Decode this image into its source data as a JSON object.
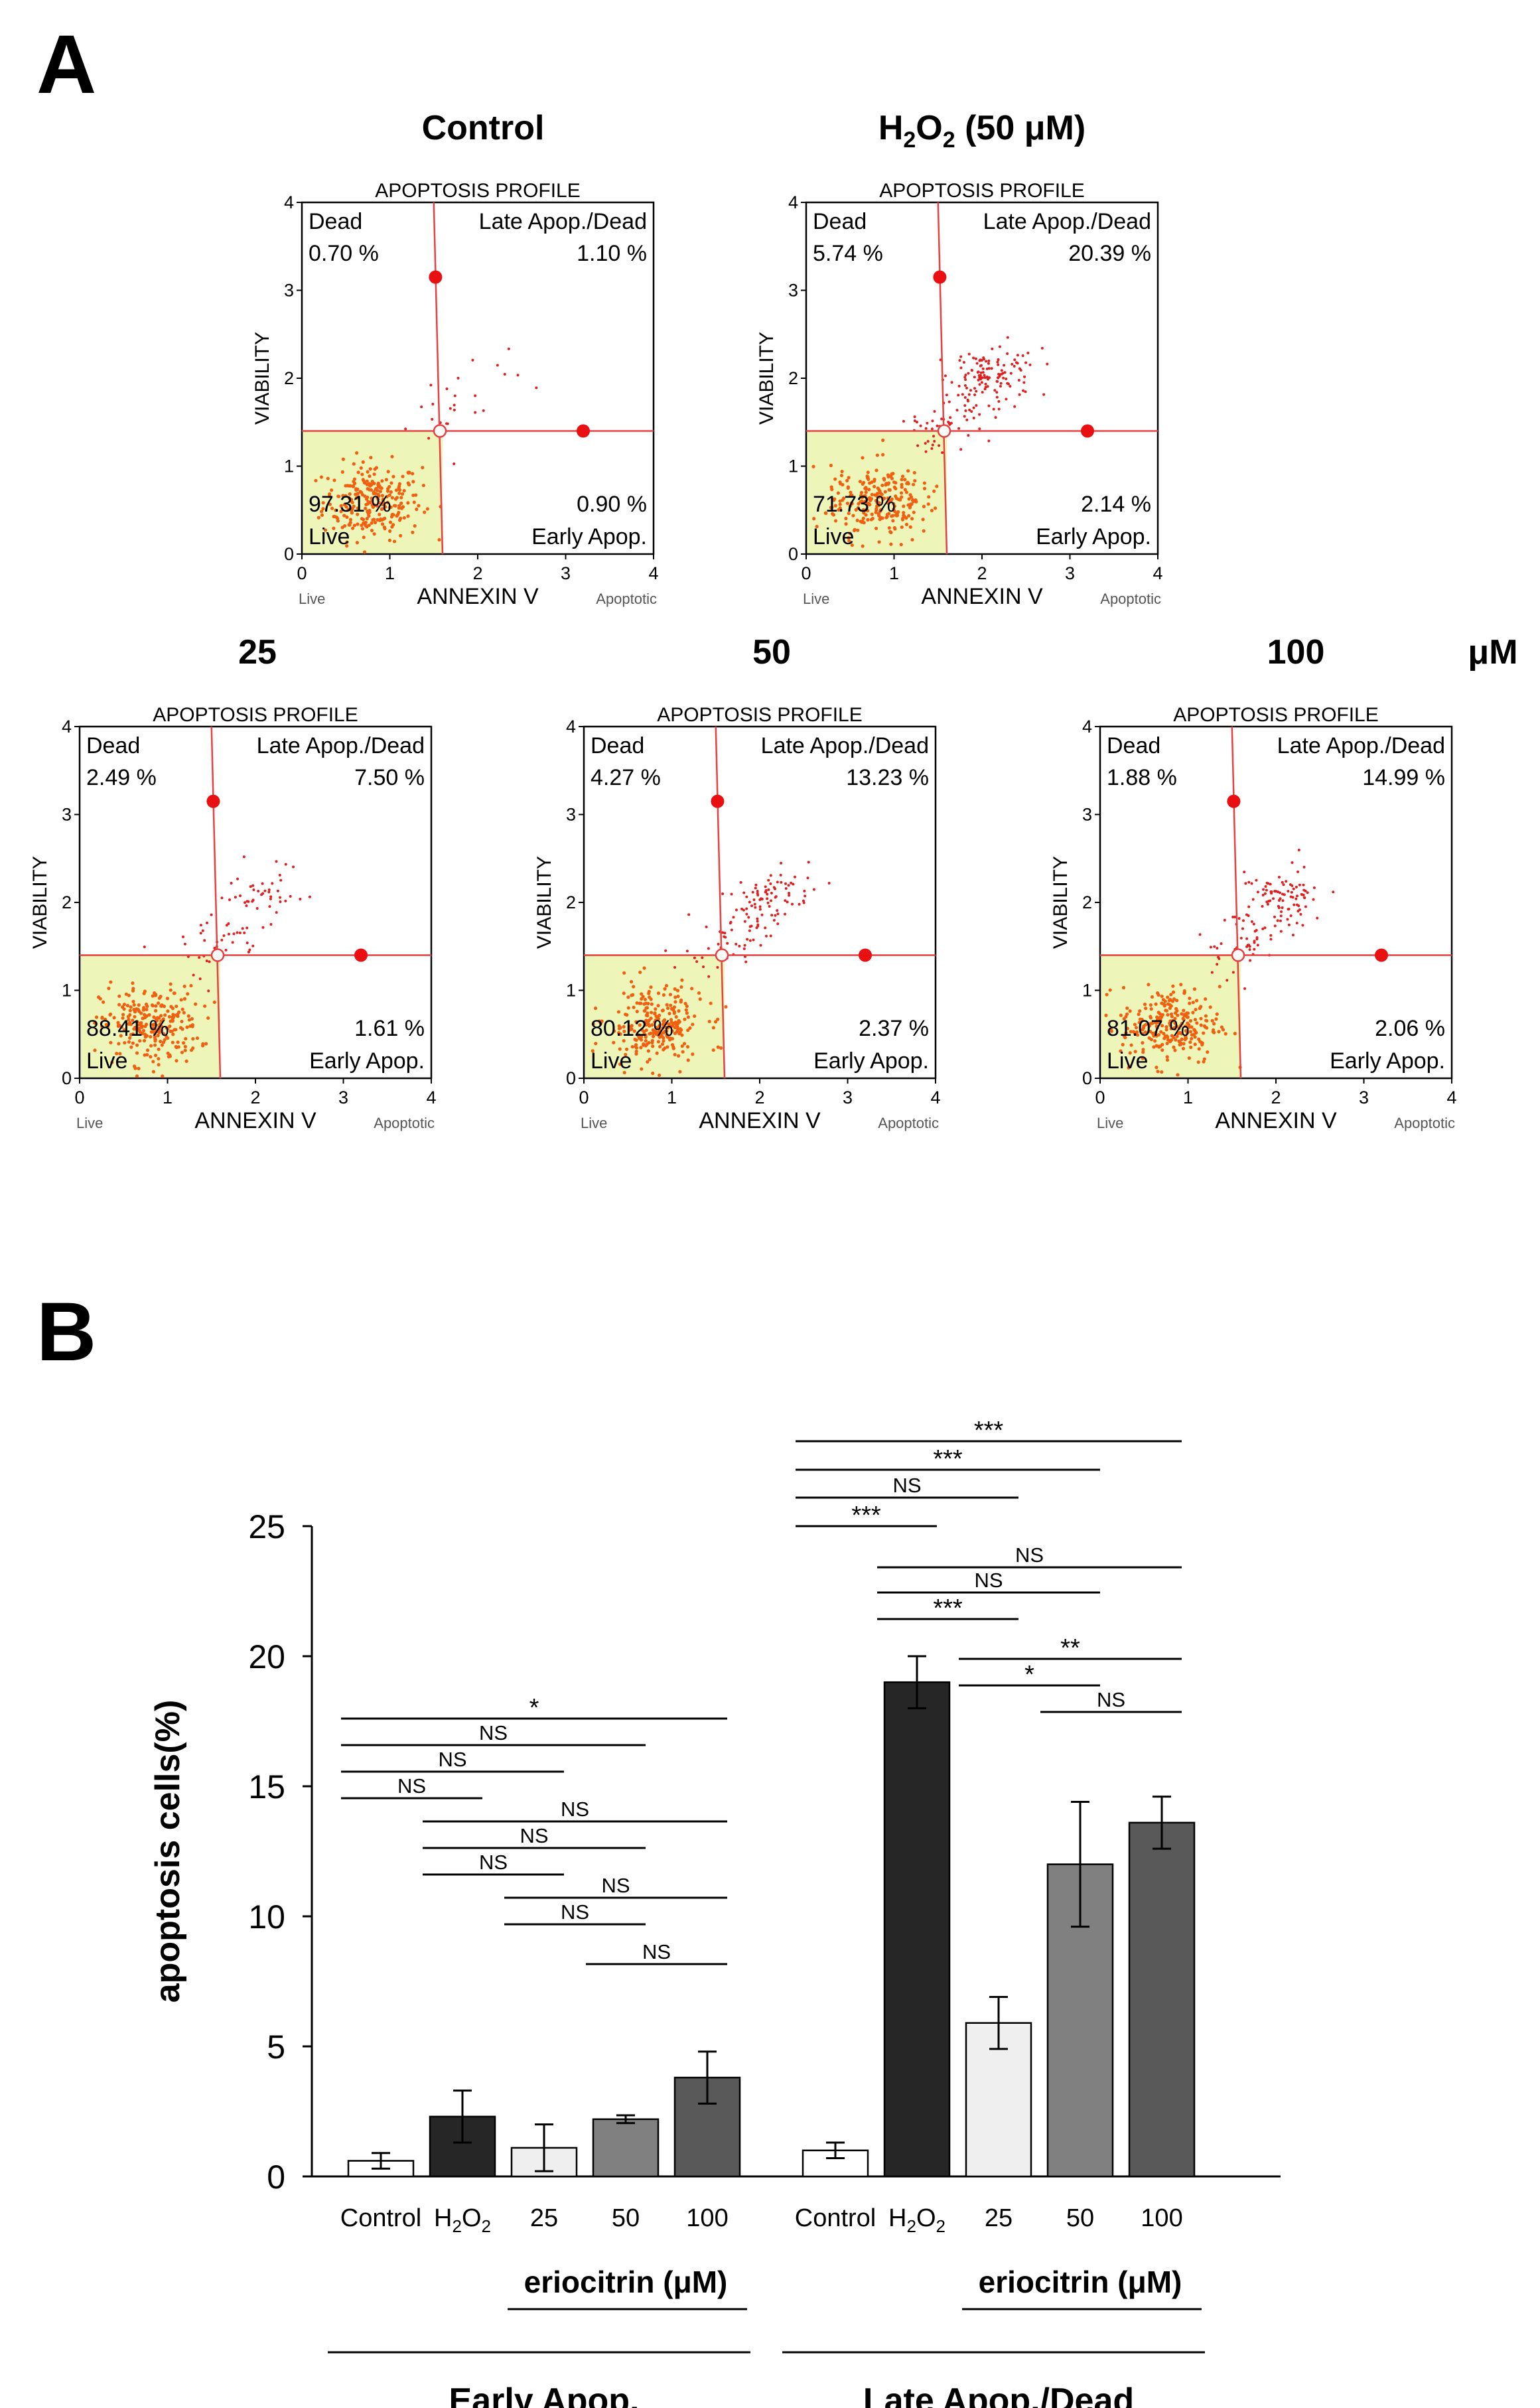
{
  "panel_a_label": "A",
  "panel_b_label": "B",
  "col_titles": {
    "control": "Control",
    "h2o2_prefix": "H",
    "h2o2_sub1": "2",
    "h2o2_mid": "O",
    "h2o2_sub2": "2",
    "h2o2_suffix": " (50 μM)"
  },
  "row2_titles": [
    "25",
    "50",
    "100"
  ],
  "row2_unit": "μM",
  "plot_labels": {
    "profile": "APOPTOSIS PROFILE",
    "dead": "Dead",
    "late": "Late Apop./Dead",
    "live": "Live",
    "early": "Early Apop.",
    "xlabel": "ANNEXIN V",
    "ylabel": "VIABILITY",
    "live_small": "Live",
    "apoptotic_small": "Apoptotic",
    "ticks": [
      "0",
      "1",
      "2",
      "3",
      "4"
    ]
  },
  "flow_plots": [
    {
      "id": "control",
      "dead": "0.70 %",
      "late": "1.10 %",
      "live": "97.31 %",
      "early": "0.90 %"
    },
    {
      "id": "h2o2",
      "dead": "5.74 %",
      "late": "20.39 %",
      "live": "71.73 %",
      "early": "2.14 %"
    },
    {
      "id": "eri25",
      "dead": "2.49 %",
      "late": "7.50 %",
      "live": "88.41 %",
      "early": "1.61 %"
    },
    {
      "id": "eri50",
      "dead": "4.27 %",
      "late": "13.23 %",
      "live": "80.12 %",
      "early": "2.37 %"
    },
    {
      "id": "eri100",
      "dead": "1.88 %",
      "late": "14.99 %",
      "live": "81.07 %",
      "early": "2.06 %"
    }
  ],
  "chart_data": {
    "type": "bar",
    "ylabel": "apoptosis cells(%)",
    "ylim": [
      0,
      25
    ],
    "yticks": [
      "0",
      "5",
      "10",
      "15",
      "20",
      "25"
    ],
    "categories": [
      "Control",
      "H2O2",
      "25",
      "50",
      "100"
    ],
    "treatment_label": "eriocitrin (μM)",
    "colors": [
      "#ffffff",
      "#262626",
      "#efefef",
      "#808080",
      "#595959"
    ],
    "groups": [
      {
        "name": "Early Apop.",
        "values": [
          0.6,
          2.3,
          1.1,
          2.2,
          3.8
        ],
        "errors": [
          0.3,
          1.0,
          0.9,
          0.15,
          1.0
        ]
      },
      {
        "name": "Late Apop./Dead",
        "values": [
          1.0,
          19.0,
          5.9,
          12.0,
          13.6
        ],
        "errors": [
          0.3,
          1.0,
          1.0,
          2.4,
          1.0
        ]
      }
    ],
    "significance": [
      {
        "group": 0,
        "from": 0,
        "to": 4,
        "label": "*"
      },
      {
        "group": 0,
        "from": 0,
        "to": 3,
        "label": "NS"
      },
      {
        "group": 0,
        "from": 0,
        "to": 2,
        "label": "NS"
      },
      {
        "group": 0,
        "from": 0,
        "to": 1,
        "label": "NS"
      },
      {
        "group": 0,
        "from": 1,
        "to": 4,
        "label": "NS"
      },
      {
        "group": 0,
        "from": 1,
        "to": 3,
        "label": "NS"
      },
      {
        "group": 0,
        "from": 1,
        "to": 2,
        "label": "NS"
      },
      {
        "group": 0,
        "from": 2,
        "to": 4,
        "label": "NS"
      },
      {
        "group": 0,
        "from": 2,
        "to": 3,
        "label": "NS"
      },
      {
        "group": 0,
        "from": 3,
        "to": 4,
        "label": "NS"
      },
      {
        "group": 1,
        "from": 0,
        "to": 4,
        "label": "***"
      },
      {
        "group": 1,
        "from": 0,
        "to": 3,
        "label": "***"
      },
      {
        "group": 1,
        "from": 0,
        "to": 2,
        "label": "NS"
      },
      {
        "group": 1,
        "from": 0,
        "to": 1,
        "label": "***"
      },
      {
        "group": 1,
        "from": 1,
        "to": 4,
        "label": "NS"
      },
      {
        "group": 1,
        "from": 1,
        "to": 3,
        "label": "NS"
      },
      {
        "group": 1,
        "from": 1,
        "to": 2,
        "label": "***"
      },
      {
        "group": 1,
        "from": 2,
        "to": 4,
        "label": "**"
      },
      {
        "group": 1,
        "from": 2,
        "to": 3,
        "label": "*"
      },
      {
        "group": 1,
        "from": 3,
        "to": 4,
        "label": "NS"
      }
    ]
  }
}
